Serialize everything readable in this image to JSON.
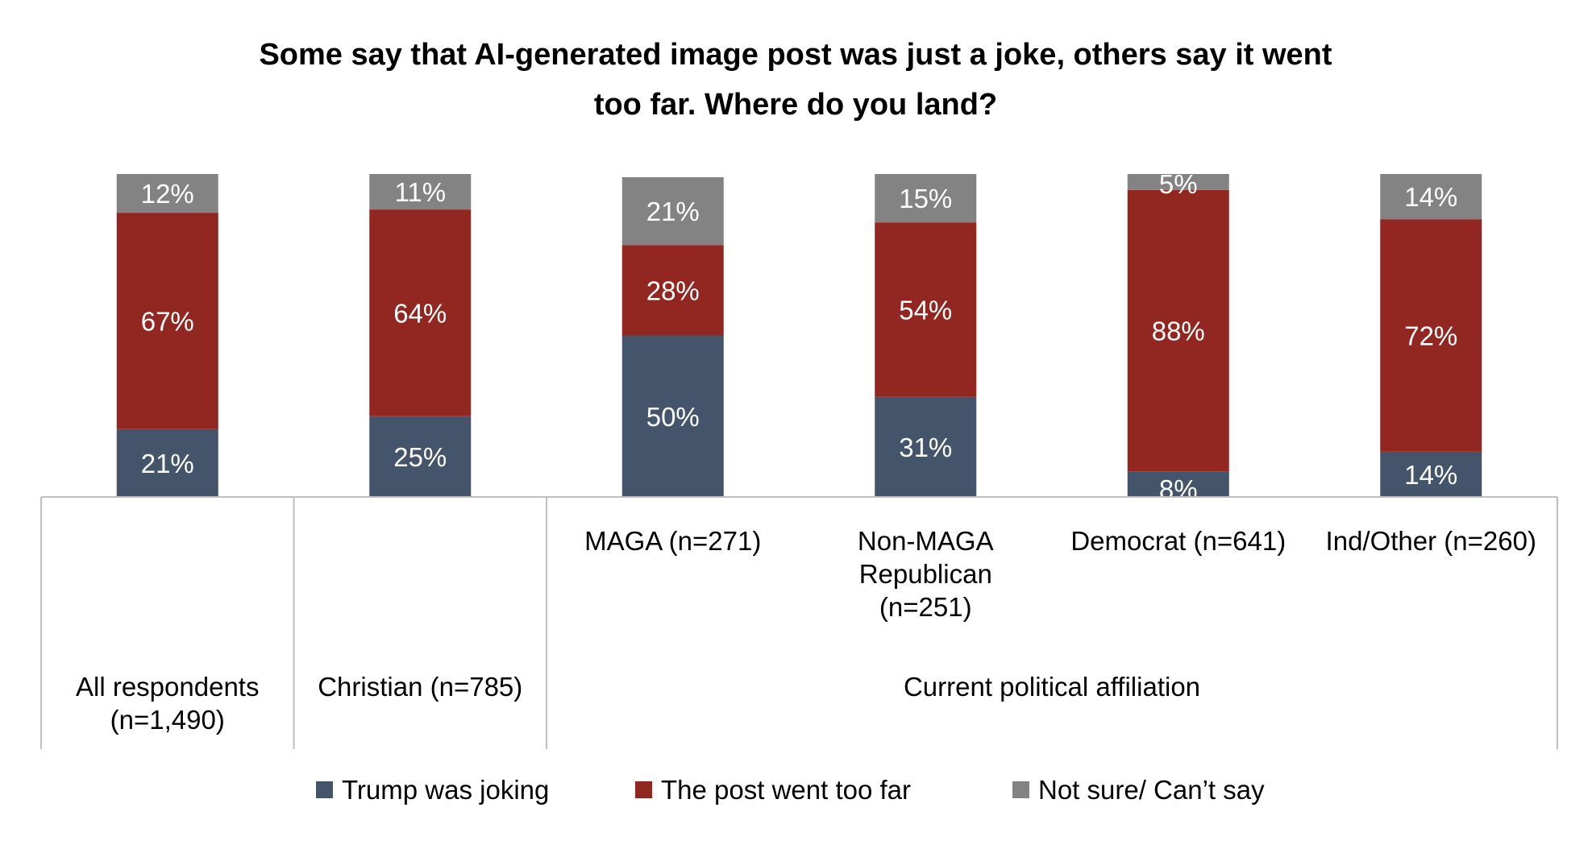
{
  "chart_data": {
    "type": "bar",
    "stacked": true,
    "title": [
      "Some say that AI-generated image post was just a joke, others say it went",
      "too far. Where do you land?"
    ],
    "categories": [
      {
        "label": [
          "All respondents",
          "(n=1,490)"
        ],
        "group": "all"
      },
      {
        "label": [
          "Christian (n=785)"
        ],
        "group": "christian"
      },
      {
        "label": [
          "MAGA (n=271)"
        ],
        "group": "political"
      },
      {
        "label": [
          "Non-MAGA",
          "Republican",
          "(n=251)"
        ],
        "group": "political"
      },
      {
        "label": [
          "Democrat (n=641)"
        ],
        "group": "political"
      },
      {
        "label": [
          "Ind/Other (n=260)"
        ],
        "group": "political"
      }
    ],
    "groups": [
      {
        "key": "political",
        "label": "Current political affiliation"
      }
    ],
    "series": [
      {
        "name": "Trump was joking",
        "color": "#44546a",
        "values": [
          21,
          25,
          50,
          31,
          8,
          14
        ]
      },
      {
        "name": "The post went too far",
        "color": "#922722",
        "values": [
          67,
          64,
          28,
          54,
          88,
          72
        ]
      },
      {
        "name": "Not sure/ Can’t say",
        "color": "#838383",
        "values": [
          12,
          11,
          21,
          15,
          5,
          14
        ]
      }
    ],
    "data_labels": [
      [
        "21%",
        "25%",
        "50%",
        "31%",
        "8%",
        "14%"
      ],
      [
        "67%",
        "64%",
        "28%",
        "54%",
        "88%",
        "72%"
      ],
      [
        "12%",
        "11%",
        "21%",
        "15%",
        "5%",
        "14%"
      ]
    ],
    "ylim": [
      0,
      100
    ],
    "legend_position": "bottom",
    "grid": false
  }
}
